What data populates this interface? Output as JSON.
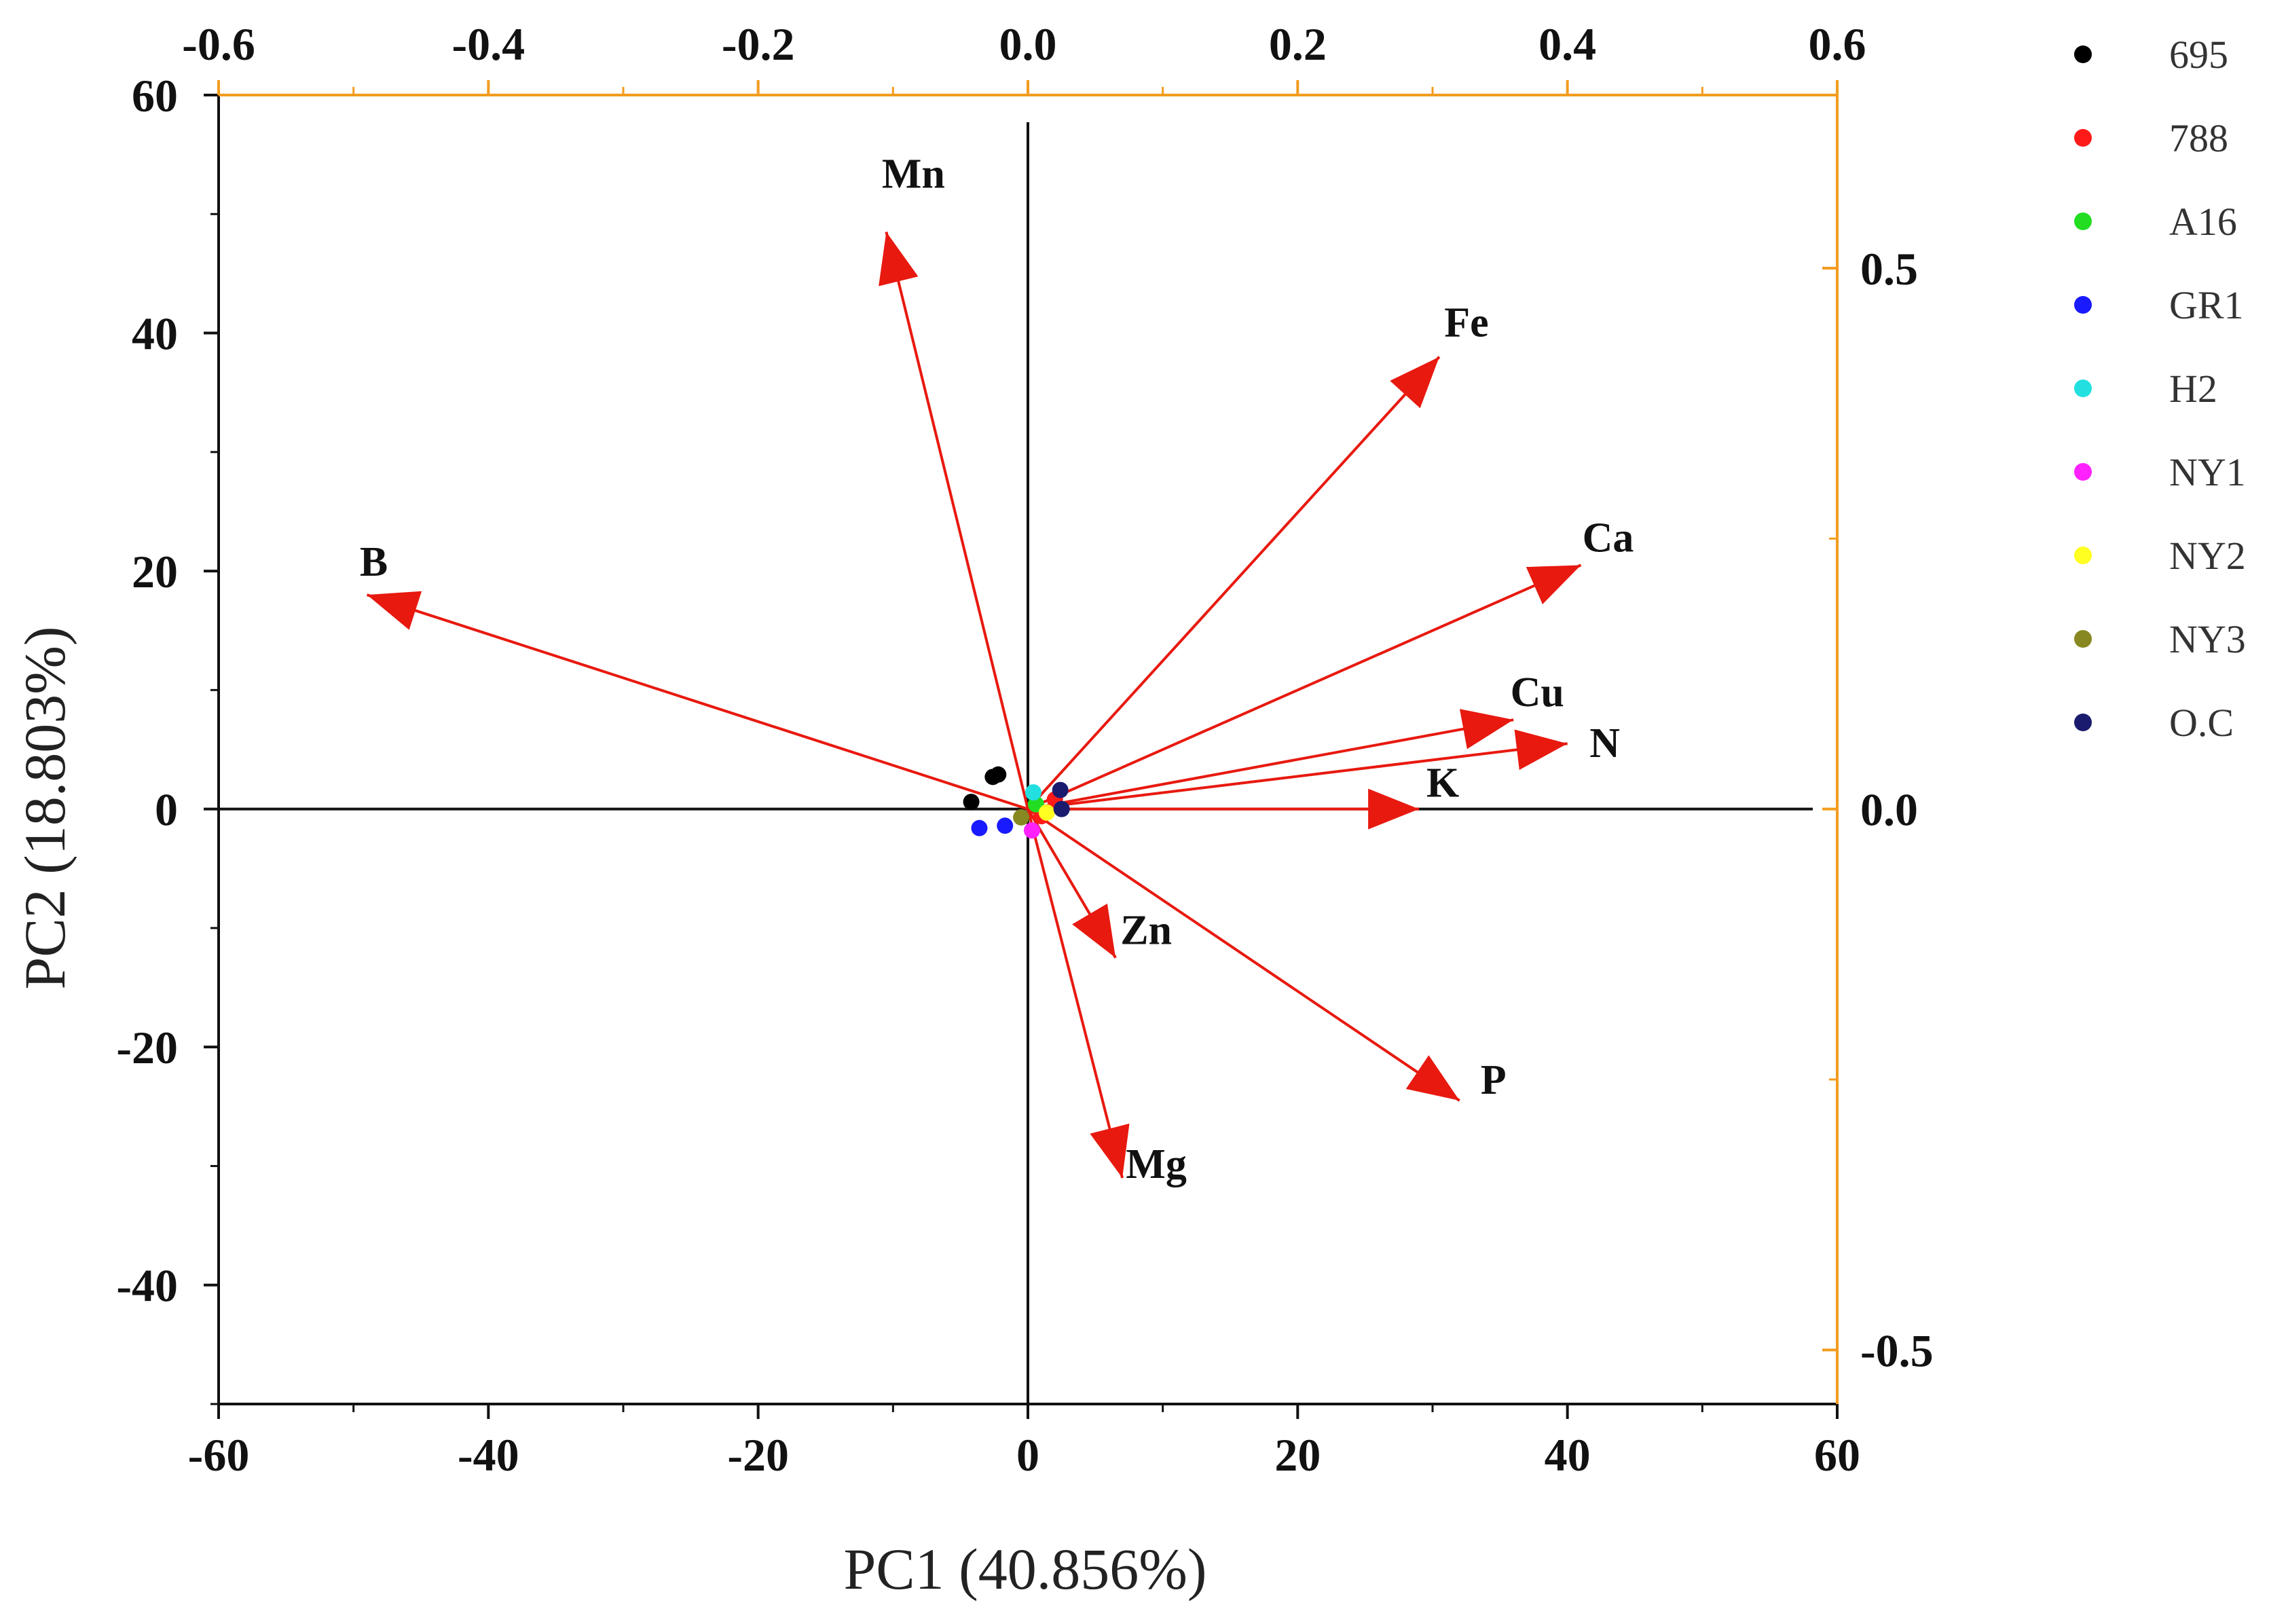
{
  "chart_data": {
    "type": "scatter",
    "subtype": "pca-biplot",
    "xlabel": "PC1 (40.856%)",
    "ylabel": "PC2 (18.803%)",
    "xlim": [
      -60,
      60
    ],
    "ylim": [
      -50,
      60
    ],
    "x_ticks": [
      -60,
      -40,
      -20,
      0,
      20,
      40,
      60
    ],
    "x_tick_labels": [
      "-60",
      "-40",
      "-20",
      "0",
      "20",
      "40",
      "60"
    ],
    "y_ticks": [
      -40,
      -20,
      0,
      20,
      40,
      60
    ],
    "y_tick_labels": [
      "-40",
      "-20",
      "0",
      "20",
      "40",
      "60"
    ],
    "top_axis": {
      "range": [
        -0.6,
        0.6
      ],
      "ticks": [
        -0.6,
        -0.4,
        -0.2,
        0.0,
        0.2,
        0.4,
        0.6
      ],
      "tick_labels": [
        "-0.6",
        "-0.4",
        "-0.2",
        "0.0",
        "0.2",
        "0.4",
        "0.6"
      ],
      "color": "#f39c1f"
    },
    "right_axis": {
      "range": [
        -0.55,
        0.66
      ],
      "ticks": [
        -0.5,
        0.0,
        0.5
      ],
      "tick_labels": [
        "-0.5",
        "0.0",
        "0.5"
      ],
      "color": "#f39c1f"
    },
    "vector_color": "#e8190f",
    "loadings": [
      {
        "label": "Mn",
        "x": -10.5,
        "y": 48.5
      },
      {
        "label": "Fe",
        "x": 30.5,
        "y": 38.0
      },
      {
        "label": "B",
        "x": -49.0,
        "y": 18.0
      },
      {
        "label": "Ca",
        "x": 41.0,
        "y": 20.5
      },
      {
        "label": "Cu",
        "x": 36.0,
        "y": 7.5
      },
      {
        "label": "N",
        "x": 40.0,
        "y": 5.5
      },
      {
        "label": "K",
        "x": 29.0,
        "y": 0.0
      },
      {
        "label": "Zn",
        "x": 6.5,
        "y": -12.5
      },
      {
        "label": "P",
        "x": 32.0,
        "y": -24.5
      },
      {
        "label": "Mg",
        "x": 7.0,
        "y": -31.0
      }
    ],
    "series": [
      {
        "name": "695",
        "color": "#000000",
        "points": [
          [
            -4.2,
            0.6
          ],
          [
            -2.6,
            2.7
          ],
          [
            -2.2,
            2.9
          ]
        ]
      },
      {
        "name": "788",
        "color": "#ff1a1a",
        "points": [
          [
            2.0,
            0.8
          ],
          [
            1.0,
            -0.6
          ]
        ]
      },
      {
        "name": "A16",
        "color": "#22dd22",
        "points": [
          [
            0.6,
            0.4
          ]
        ]
      },
      {
        "name": "GR1",
        "color": "#1a1aff",
        "points": [
          [
            -3.6,
            -1.6
          ],
          [
            -1.7,
            -1.4
          ]
        ]
      },
      {
        "name": "H2",
        "color": "#22e0e0",
        "points": [
          [
            0.4,
            1.4
          ]
        ]
      },
      {
        "name": "NY1",
        "color": "#ff22ff",
        "points": [
          [
            0.3,
            -1.8
          ]
        ]
      },
      {
        "name": "NY2",
        "color": "#ffff22",
        "points": [
          [
            1.4,
            -0.3
          ]
        ]
      },
      {
        "name": "NY3",
        "color": "#888822",
        "points": [
          [
            -0.5,
            -0.7
          ]
        ]
      },
      {
        "name": "O.C",
        "color": "#1a1a6e",
        "points": [
          [
            2.4,
            1.6
          ],
          [
            2.5,
            0.0
          ]
        ]
      }
    ]
  }
}
